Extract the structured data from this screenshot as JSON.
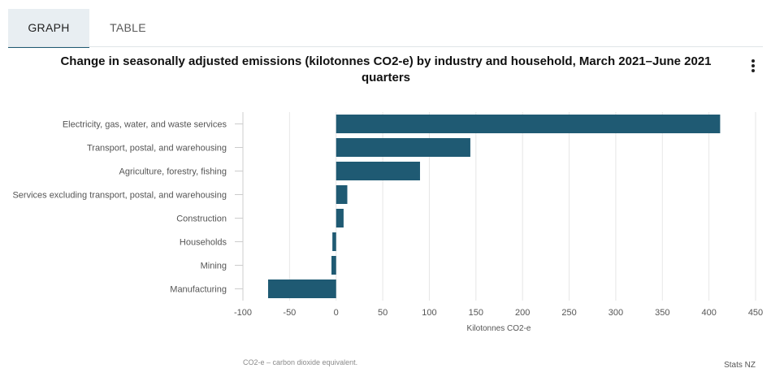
{
  "tabs": [
    {
      "label": "GRAPH",
      "active": true
    },
    {
      "label": "TABLE",
      "active": false
    }
  ],
  "menu_icon": "more-vertical-icon",
  "colors": {
    "bar": "#1f5a73",
    "grid": "#e6e6e6",
    "tab_active_bg": "#e8eef2"
  },
  "footnote": "CO2-e – carbon dioxide equivalent.",
  "credit": "Stats NZ",
  "chart_data": {
    "type": "bar",
    "orientation": "horizontal",
    "title": "Change in seasonally adjusted emissions (kilotonnes CO2-e) by industry and household, March 2021–June 2021 quarters",
    "xlabel": "Kilotonnes CO2-e",
    "ylabel": "",
    "xlim": [
      -100,
      450
    ],
    "xticks": [
      -100,
      -50,
      0,
      50,
      100,
      150,
      200,
      250,
      300,
      350,
      400,
      450
    ],
    "grid": "vertical",
    "categories": [
      "Electricity, gas, water, and waste services",
      "Transport, postal, and warehousing",
      "Agriculture, forestry, fishing",
      "Services excluding transport, postal, and warehousing",
      "Construction",
      "Households",
      "Mining",
      "Manufacturing"
    ],
    "values": [
      412,
      144,
      90,
      12,
      8,
      -4,
      -5,
      -73
    ]
  }
}
